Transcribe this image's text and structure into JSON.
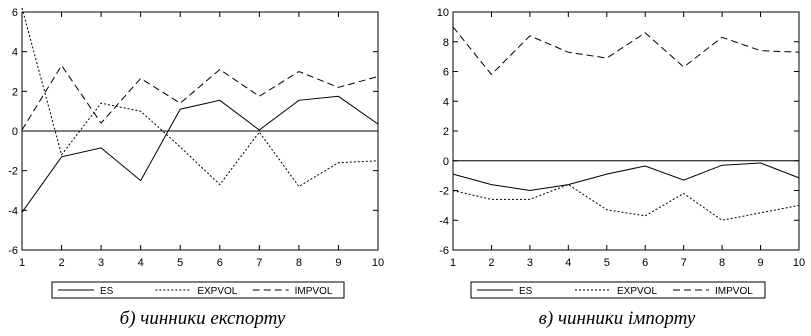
{
  "chart_data": [
    {
      "type": "line",
      "caption": "б) чинники експорту",
      "x": [
        1,
        2,
        3,
        4,
        5,
        6,
        7,
        8,
        9,
        10
      ],
      "ylim": [
        -6,
        6
      ],
      "yticks": [
        -6,
        -4,
        -2,
        0,
        2,
        4,
        6
      ],
      "xticks": [
        1,
        2,
        3,
        4,
        5,
        6,
        7,
        8,
        9,
        10
      ],
      "grid": false,
      "zero_line": true,
      "legend_position": "bottom",
      "series": [
        {
          "name": "ES",
          "style": "solid",
          "values": [
            -4.1,
            -1.3,
            -0.85,
            -2.5,
            1.1,
            1.55,
            0.05,
            1.55,
            1.75,
            0.35
          ]
        },
        {
          "name": "EXPVOL",
          "style": "dotted",
          "values": [
            6.2,
            -1.2,
            1.4,
            1.0,
            -0.8,
            -2.7,
            -0.05,
            -2.8,
            -1.6,
            -1.5
          ]
        },
        {
          "name": "IMPVOL",
          "style": "dashed",
          "values": [
            0.05,
            3.3,
            0.4,
            2.65,
            1.4,
            3.1,
            1.75,
            3.0,
            2.2,
            2.75
          ]
        }
      ]
    },
    {
      "type": "line",
      "caption": "в) чинники імпорту",
      "x": [
        1,
        2,
        3,
        4,
        5,
        6,
        7,
        8,
        9,
        10
      ],
      "ylim": [
        -6,
        10
      ],
      "yticks": [
        -6,
        -4,
        -2,
        0,
        2,
        4,
        6,
        8,
        10
      ],
      "xticks": [
        1,
        2,
        3,
        4,
        5,
        6,
        7,
        8,
        9,
        10
      ],
      "grid": false,
      "zero_line": true,
      "legend_position": "bottom",
      "series": [
        {
          "name": "ES",
          "style": "solid",
          "values": [
            -0.9,
            -1.6,
            -2.0,
            -1.6,
            -0.9,
            -0.35,
            -1.3,
            -0.3,
            -0.15,
            -1.15
          ]
        },
        {
          "name": "EXPVOL",
          "style": "dotted",
          "values": [
            -2.0,
            -2.6,
            -2.6,
            -1.6,
            -3.3,
            -3.7,
            -2.2,
            -4.0,
            -3.5,
            -3.0
          ]
        },
        {
          "name": "IMPVOL",
          "style": "dashed",
          "values": [
            9.0,
            5.8,
            8.4,
            7.3,
            6.9,
            8.6,
            6.3,
            8.3,
            7.4,
            7.3
          ]
        }
      ]
    }
  ]
}
